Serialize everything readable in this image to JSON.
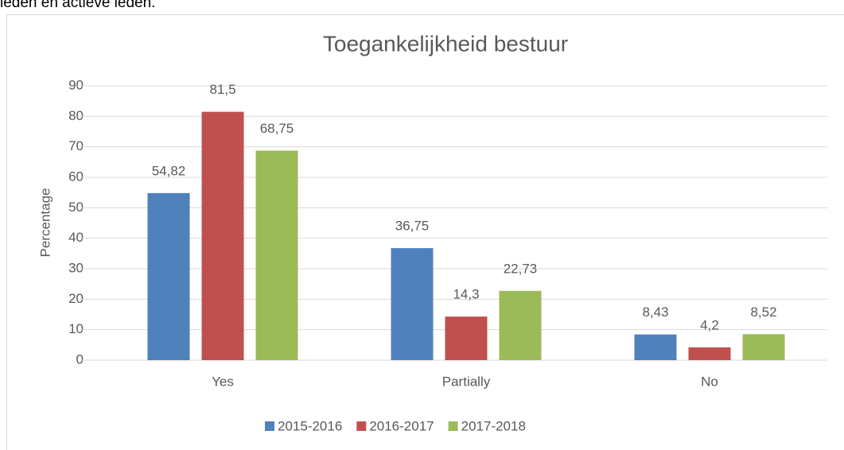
{
  "context_text": "leden en actieve leden.",
  "chart_data": {
    "type": "bar",
    "title": "Toegankelijkheid bestuur",
    "y_label": "Percentage",
    "categories": [
      "Yes",
      "Partially",
      "No"
    ],
    "series": [
      {
        "name": "2015-2016",
        "color": "#4f81bd",
        "values": [
          54.82,
          36.75,
          8.43
        ],
        "value_labels": [
          "54,82",
          "36,75",
          "8,43"
        ]
      },
      {
        "name": "2016-2017",
        "color": "#c0504d",
        "values": [
          81.5,
          14.3,
          4.2
        ],
        "value_labels": [
          "81,5",
          "14,3",
          "4,2"
        ]
      },
      {
        "name": "2017-2018",
        "color": "#9bbb59",
        "values": [
          68.75,
          22.73,
          8.52
        ],
        "value_labels": [
          "68,75",
          "22,73",
          "8,52"
        ]
      }
    ],
    "ylim": [
      0,
      90
    ],
    "yticks": [
      0,
      10,
      20,
      30,
      40,
      50,
      60,
      70,
      80,
      90
    ],
    "grid": true,
    "legend": "bottom"
  }
}
